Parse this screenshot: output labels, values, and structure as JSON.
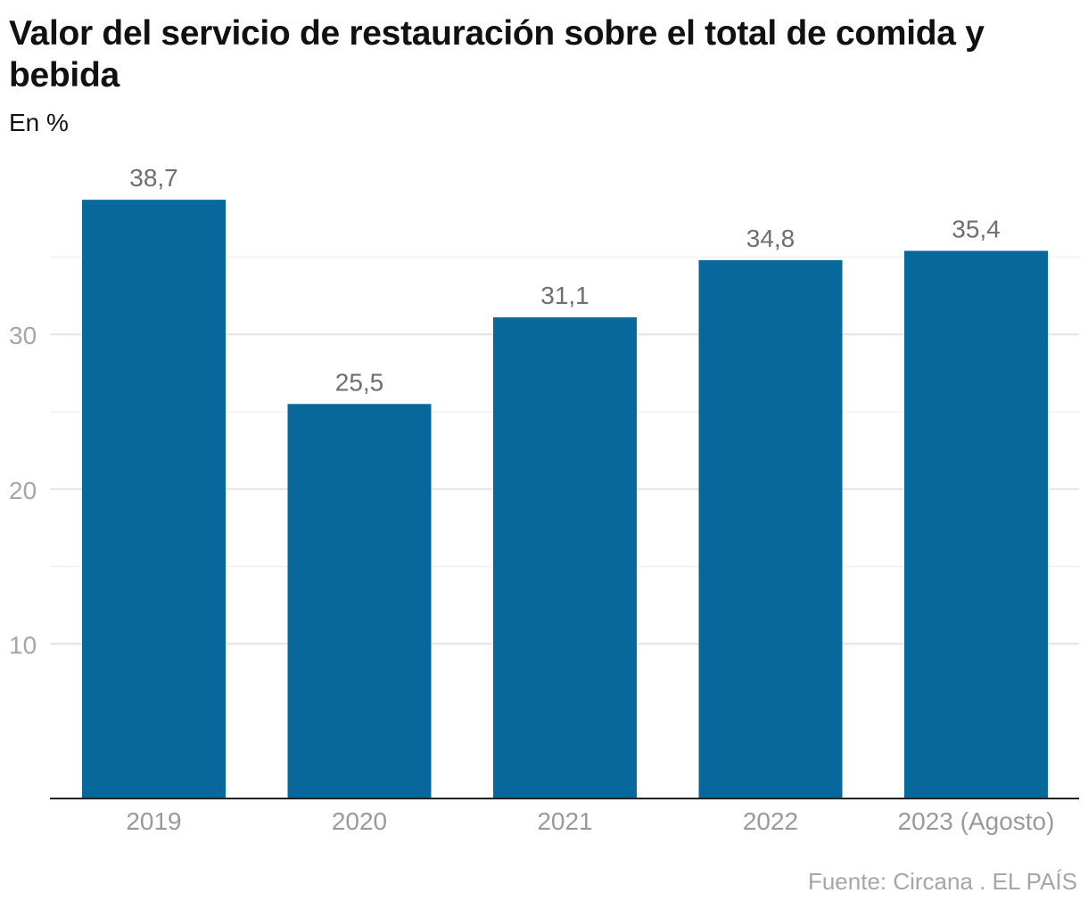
{
  "title": "Valor del servicio de restauración sobre el total de comida y bebida",
  "subtitle": "En %",
  "source": "Fuente: Circana . EL PAÍS",
  "colors": {
    "bar": "#08689b",
    "grid": "#e3e3e3",
    "axis": "#222222"
  },
  "chart_data": {
    "type": "bar",
    "title": "Valor del servicio de restauración sobre el total de comida y bebida",
    "subtitle": "En %",
    "categories": [
      "2019",
      "2020",
      "2021",
      "2022",
      "2023 (Agosto)"
    ],
    "values": [
      38.7,
      25.5,
      31.1,
      34.8,
      35.4
    ],
    "value_labels": [
      "38,7",
      "25,5",
      "31,1",
      "34,8",
      "35,4"
    ],
    "xlabel": "",
    "ylabel": "",
    "ylim": [
      0,
      40
    ],
    "yticks": [
      10,
      20,
      30
    ],
    "ytick_labels": [
      "10",
      "20",
      "30"
    ],
    "minor_gridlines": [
      15,
      25,
      35
    ],
    "grid": true,
    "legend": "none"
  }
}
